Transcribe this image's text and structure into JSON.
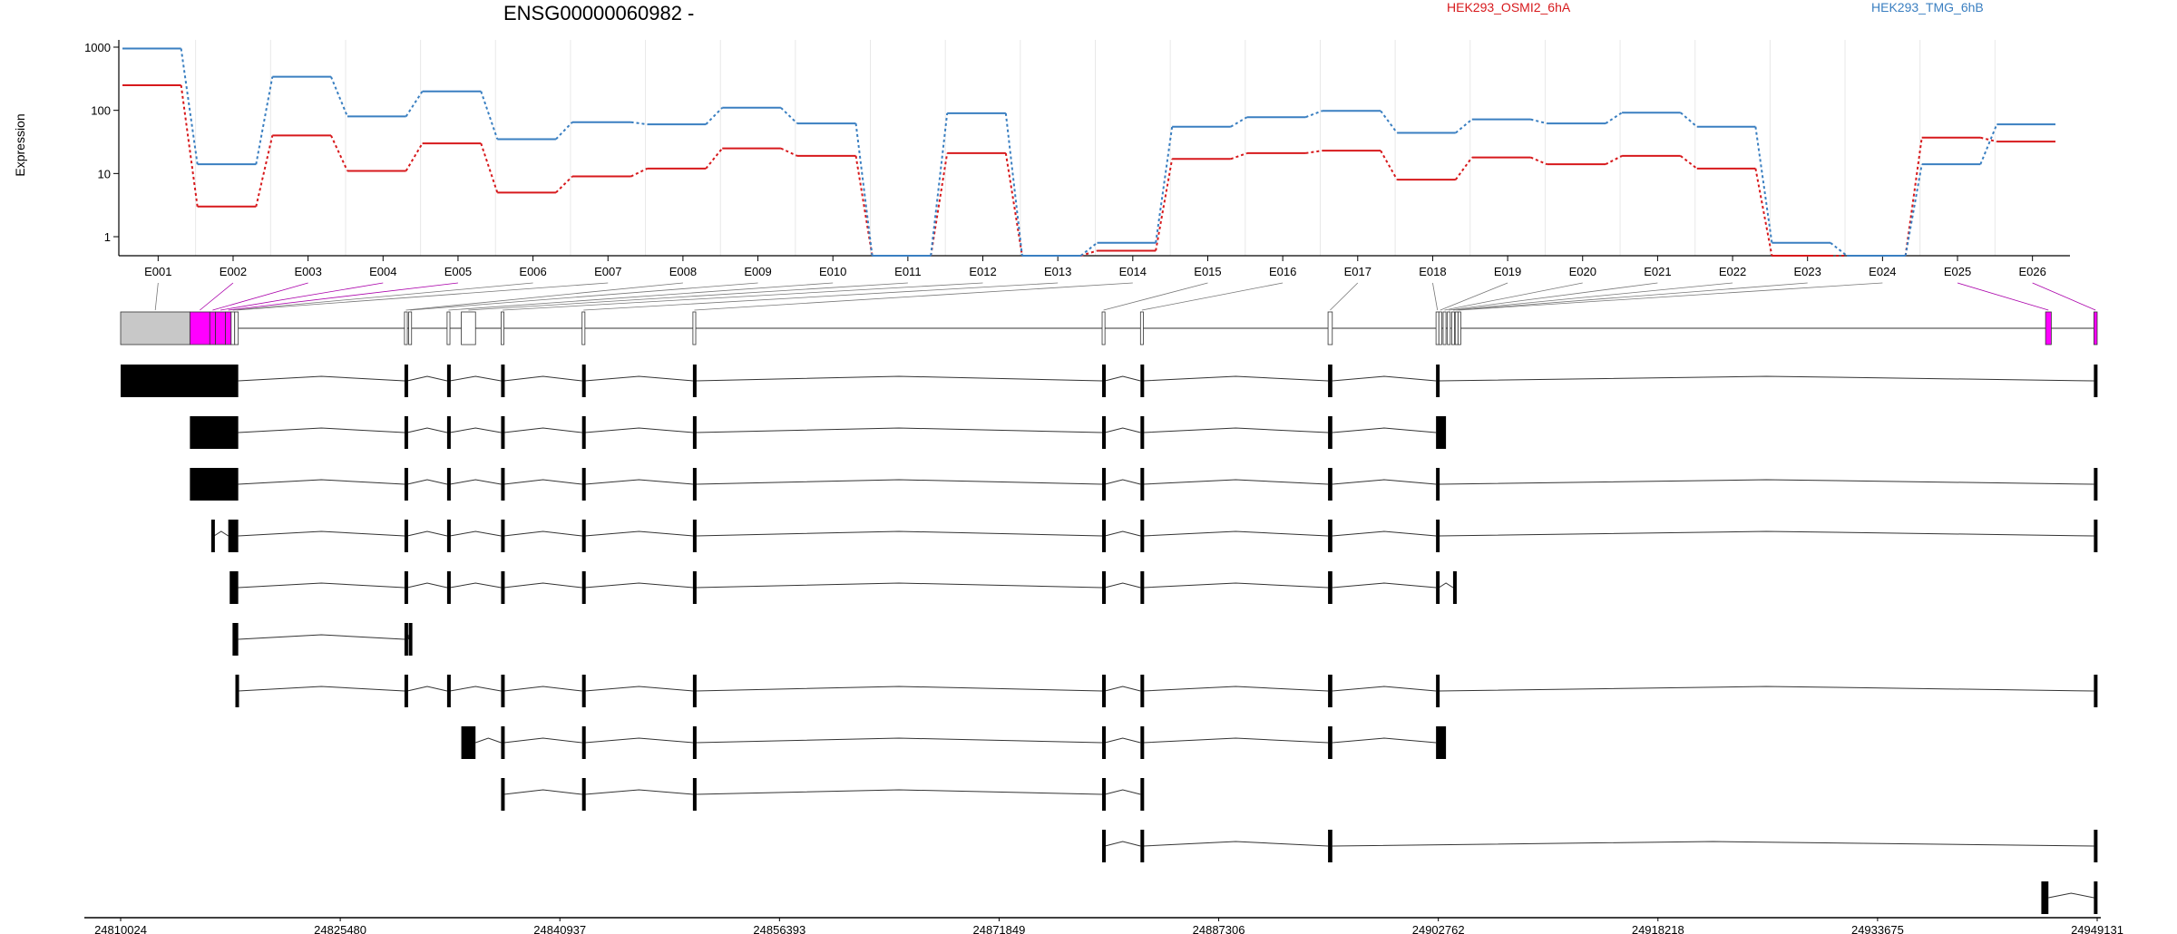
{
  "chart_data": {
    "type": "line",
    "title": "ENSG00000060982 -",
    "ylabel": "Expression",
    "xlabel": "",
    "yscale": "log",
    "ylim": [
      0.5,
      1000
    ],
    "yticks": [
      1,
      10,
      100,
      1000
    ],
    "ytick_labels": [
      "1",
      "10",
      "100",
      "1000"
    ],
    "grid": "vertical",
    "legend_placement": "top",
    "categories": [
      "E001",
      "E002",
      "E003",
      "E004",
      "E005",
      "E006",
      "E007",
      "E008",
      "E009",
      "E010",
      "E011",
      "E012",
      "E013",
      "E014",
      "E015",
      "E016",
      "E017",
      "E018",
      "E019",
      "E020",
      "E021",
      "E022",
      "E023",
      "E024",
      "E025",
      "E026"
    ],
    "series": [
      {
        "name": "HEK293_OSMI2_6hA",
        "color": "#d7191c",
        "values": [
          250,
          3,
          40,
          11,
          30,
          5,
          9,
          12,
          25,
          19,
          0.5,
          21,
          0.5,
          0.6,
          17,
          21,
          23,
          8,
          18,
          14,
          19,
          12,
          0.5,
          0.5,
          37,
          32
        ]
      },
      {
        "name": "HEK293_TMG_6hB",
        "color": "#3a7fc1",
        "values": [
          950,
          14,
          340,
          80,
          200,
          35,
          65,
          60,
          110,
          62,
          0.5,
          90,
          0.5,
          0.8,
          55,
          78,
          98,
          44,
          72,
          62,
          92,
          55,
          0.8,
          0.5,
          14,
          60
        ]
      }
    ],
    "genomic_axis": {
      "start": 24810024,
      "end": 24949131,
      "tick_labels": [
        "24810024",
        "24825480",
        "24840937",
        "24856393",
        "24871849",
        "24887306",
        "24902762",
        "24918218",
        "24933675",
        "24949131"
      ]
    },
    "exons": [
      {
        "id": "E001",
        "start": 24810024,
        "end": 24814900,
        "color": "#c8c8c8"
      },
      {
        "id": "E002",
        "start": 24814900,
        "end": 24816300,
        "color": "#ff00ff"
      },
      {
        "id": "E003",
        "start": 24816300,
        "end": 24816700,
        "color": "#ff00ff"
      },
      {
        "id": "E004",
        "start": 24816700,
        "end": 24817400,
        "color": "#ff00ff"
      },
      {
        "id": "E005",
        "start": 24817400,
        "end": 24817800,
        "color": "#ff00ff"
      },
      {
        "id": "E006",
        "start": 24817800,
        "end": 24818050,
        "color": "#ffffff"
      },
      {
        "id": "E007",
        "start": 24818050,
        "end": 24818300,
        "color": "#ffffff"
      },
      {
        "id": "E008",
        "start": 24830000,
        "end": 24830200,
        "color": "#ffffff"
      },
      {
        "id": "E009",
        "start": 24830300,
        "end": 24830500,
        "color": "#ffffff"
      },
      {
        "id": "E010",
        "start": 24833000,
        "end": 24833200,
        "color": "#ffffff"
      },
      {
        "id": "E011",
        "start": 24834000,
        "end": 24835000,
        "color": "#ffffff"
      },
      {
        "id": "E012",
        "start": 24836800,
        "end": 24837000,
        "color": "#ffffff"
      },
      {
        "id": "E013",
        "start": 24842500,
        "end": 24842700,
        "color": "#ffffff"
      },
      {
        "id": "E014",
        "start": 24850300,
        "end": 24850500,
        "color": "#ffffff"
      },
      {
        "id": "E015",
        "start": 24879100,
        "end": 24879300,
        "color": "#ffffff"
      },
      {
        "id": "E016",
        "start": 24881800,
        "end": 24882000,
        "color": "#ffffff"
      },
      {
        "id": "E017",
        "start": 24895000,
        "end": 24895300,
        "color": "#ffffff"
      },
      {
        "id": "E018",
        "start": 24902600,
        "end": 24902800,
        "color": "#ffffff"
      },
      {
        "id": "E019",
        "start": 24902800,
        "end": 24903000,
        "color": "#ffffff"
      },
      {
        "id": "E020",
        "start": 24903100,
        "end": 24903300,
        "color": "#ffffff"
      },
      {
        "id": "E021",
        "start": 24903400,
        "end": 24903600,
        "color": "#ffffff"
      },
      {
        "id": "E022",
        "start": 24903700,
        "end": 24903900,
        "color": "#ffffff"
      },
      {
        "id": "E023",
        "start": 24903950,
        "end": 24904100,
        "color": "#ffffff"
      },
      {
        "id": "E024",
        "start": 24904150,
        "end": 24904250,
        "color": "#ffffff"
      },
      {
        "id": "E025",
        "start": 24945500,
        "end": 24945900,
        "color": "#ff00ff"
      },
      {
        "id": "E026",
        "start": 24948900,
        "end": 24949131,
        "color": "#ff00ff"
      }
    ],
    "transcripts": [
      {
        "exons": [
          [
            24810024,
            24818300
          ],
          [
            24830000,
            24830200
          ],
          [
            24833000,
            24833200
          ],
          [
            24836800,
            24837000
          ],
          [
            24842500,
            24842700
          ],
          [
            24850300,
            24850500
          ],
          [
            24879100,
            24879300
          ],
          [
            24881800,
            24882000
          ],
          [
            24895000,
            24895300
          ],
          [
            24902600,
            24902800
          ],
          [
            24948900,
            24949131
          ]
        ]
      },
      {
        "exons": [
          [
            24814900,
            24818300
          ],
          [
            24830000,
            24830200
          ],
          [
            24833000,
            24833200
          ],
          [
            24836800,
            24837000
          ],
          [
            24842500,
            24842700
          ],
          [
            24850300,
            24850500
          ],
          [
            24879100,
            24879300
          ],
          [
            24881800,
            24882000
          ],
          [
            24895000,
            24895300
          ],
          [
            24902600,
            24903300
          ]
        ]
      },
      {
        "exons": [
          [
            24814900,
            24818300
          ],
          [
            24830000,
            24830200
          ],
          [
            24833000,
            24833200
          ],
          [
            24836800,
            24837000
          ],
          [
            24842500,
            24842700
          ],
          [
            24850300,
            24850500
          ],
          [
            24879100,
            24879300
          ],
          [
            24881800,
            24882000
          ],
          [
            24895000,
            24895300
          ],
          [
            24902600,
            24902800
          ],
          [
            24948900,
            24949131
          ]
        ]
      },
      {
        "exons": [
          [
            24816400,
            24816600
          ],
          [
            24817600,
            24818300
          ],
          [
            24830000,
            24830200
          ],
          [
            24833000,
            24833200
          ],
          [
            24836800,
            24837000
          ],
          [
            24842500,
            24842700
          ],
          [
            24850300,
            24850500
          ],
          [
            24879100,
            24879300
          ],
          [
            24881800,
            24882000
          ],
          [
            24895000,
            24895300
          ],
          [
            24902600,
            24902800
          ],
          [
            24948900,
            24949131
          ]
        ]
      },
      {
        "exons": [
          [
            24817700,
            24818300
          ],
          [
            24830000,
            24830200
          ],
          [
            24833000,
            24833200
          ],
          [
            24836800,
            24837000
          ],
          [
            24842500,
            24842700
          ],
          [
            24850300,
            24850500
          ],
          [
            24879100,
            24879300
          ],
          [
            24881800,
            24882000
          ],
          [
            24895000,
            24895300
          ],
          [
            24902600,
            24902800
          ],
          [
            24903800,
            24904000
          ]
        ]
      },
      {
        "exons": [
          [
            24817900,
            24818300
          ],
          [
            24830000,
            24830200
          ],
          [
            24830300,
            24830500
          ]
        ]
      },
      {
        "exons": [
          [
            24818100,
            24818300
          ],
          [
            24830000,
            24830200
          ],
          [
            24833000,
            24833200
          ],
          [
            24836800,
            24837000
          ],
          [
            24842500,
            24842700
          ],
          [
            24850300,
            24850500
          ],
          [
            24879100,
            24879300
          ],
          [
            24881800,
            24882000
          ],
          [
            24895000,
            24895300
          ],
          [
            24902600,
            24902800
          ],
          [
            24948900,
            24949131
          ]
        ]
      },
      {
        "exons": [
          [
            24834000,
            24835000
          ],
          [
            24836800,
            24837000
          ],
          [
            24842500,
            24842700
          ],
          [
            24850300,
            24850500
          ],
          [
            24879100,
            24879300
          ],
          [
            24881800,
            24882000
          ],
          [
            24895000,
            24895300
          ],
          [
            24902600,
            24903300
          ]
        ]
      },
      {
        "exons": [
          [
            24836800,
            24837000
          ],
          [
            24842500,
            24842700
          ],
          [
            24850300,
            24850500
          ],
          [
            24879100,
            24879300
          ],
          [
            24881800,
            24882000
          ]
        ]
      },
      {
        "exons": [
          [
            24879100,
            24879300
          ],
          [
            24881800,
            24882000
          ],
          [
            24895000,
            24895300
          ],
          [
            24948900,
            24949131
          ]
        ]
      },
      {
        "exons": [
          [
            24945200,
            24945700
          ],
          [
            24948900,
            24949131
          ]
        ]
      }
    ]
  }
}
